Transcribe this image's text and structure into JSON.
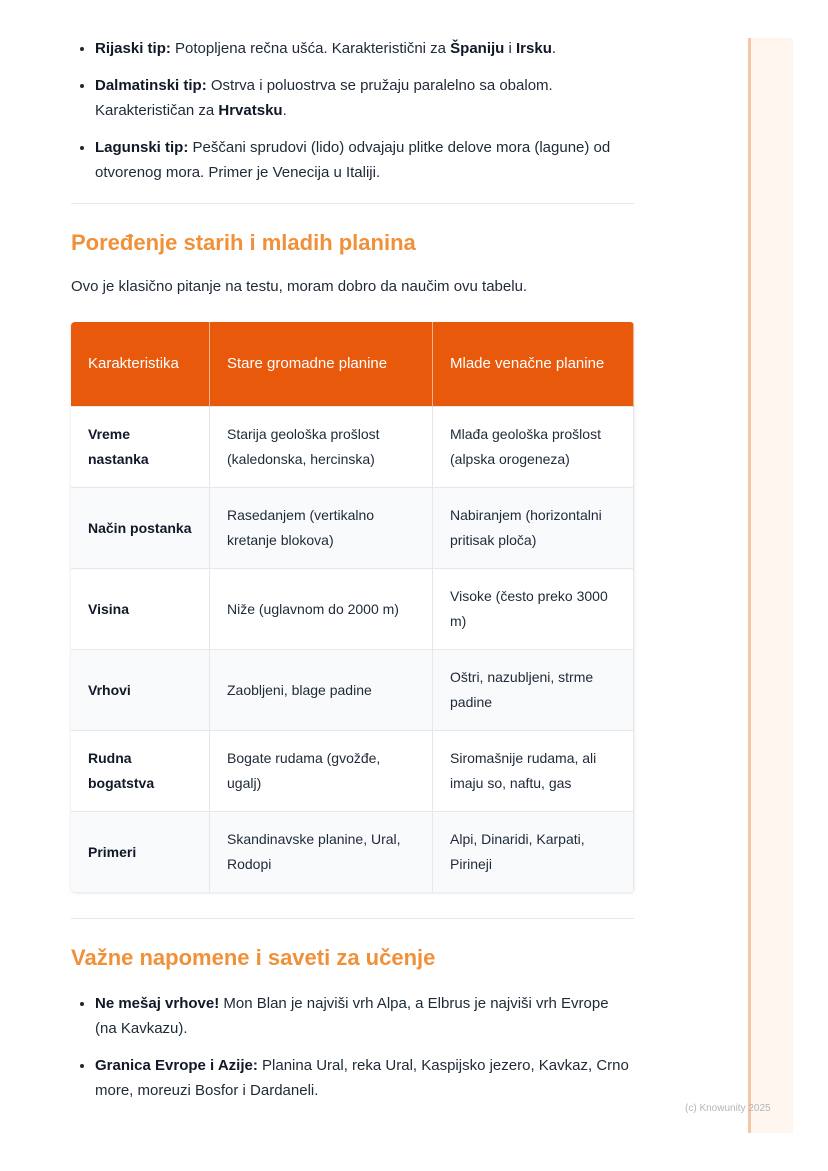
{
  "top_list": [
    {
      "bold": "Rijaski tip:",
      "text": " Potopljena rečna ušća. Karakteristični za ",
      "b2": "Španiju",
      "t2": " i ",
      "b3": "Irsku",
      "t3": "."
    },
    {
      "bold": "Dalmatinski tip:",
      "text": " Ostrva i poluostrva se pružaju paralelno sa obalom. Karakterističan za ",
      "b2": "Hrvatsku",
      "t2": ".",
      "b3": "",
      "t3": ""
    },
    {
      "bold": "Lagunski tip:",
      "text": " Peščani sprudovi (lido) odvajaju plitke delove mora (lagune) od otvorenog mora. Primer je Venecija u Italiji.",
      "b2": "",
      "t2": "",
      "b3": "",
      "t3": ""
    }
  ],
  "section1": {
    "title": "Poređenje starih i mladih planina",
    "intro": "Ovo je klasično pitanje na testu, moram dobro da naučim ovu tabelu."
  },
  "table": {
    "headers": [
      "Karakteristika",
      "Stare gromadne planine",
      "Mlade venačne planine"
    ],
    "rows": [
      [
        "Vreme nastanka",
        "Starija geološka prošlost (kaledonska, hercinska)",
        "Mlađa geološka prošlost (alpska orogeneza)"
      ],
      [
        "Način postanka",
        "Rasedanjem (vertikalno kretanje blokova)",
        "Nabiranjem (horizontalni pritisak ploča)"
      ],
      [
        "Visina",
        "Niže (uglavnom do 2000 m)",
        "Visoke (često preko 3000 m)"
      ],
      [
        "Vrhovi",
        "Zaobljeni, blage padine",
        "Oštri, nazubljeni, strme padine"
      ],
      [
        "Rudna bogatstva",
        "Bogate rudama (gvožđe, ugalj)",
        "Siromašnije rudama, ali imaju so, naftu, gas"
      ],
      [
        "Primeri",
        "Skandinavske planine, Ural, Rodopi",
        "Alpi, Dinaridi, Karpati, Pirineji"
      ]
    ]
  },
  "section2": {
    "title": "Važne napomene i saveti za učenje"
  },
  "bottom_list": [
    {
      "bold": "Ne mešaj vrhove!",
      "text": " Mon Blan je najviši vrh Alpa, a Elbrus je najviši vrh Evrope (na Kavkazu)."
    },
    {
      "bold": "Granica Evrope i Azije:",
      "text": " Planina Ural, reka Ural, Kaspijsko jezero, Kavkaz, Crno more, moreuzi Bosfor i Dardaneli."
    }
  ],
  "footer": "(c) Knowunity 2025",
  "colors": {
    "accent": "#e8590c",
    "heading": "#f0913a"
  }
}
